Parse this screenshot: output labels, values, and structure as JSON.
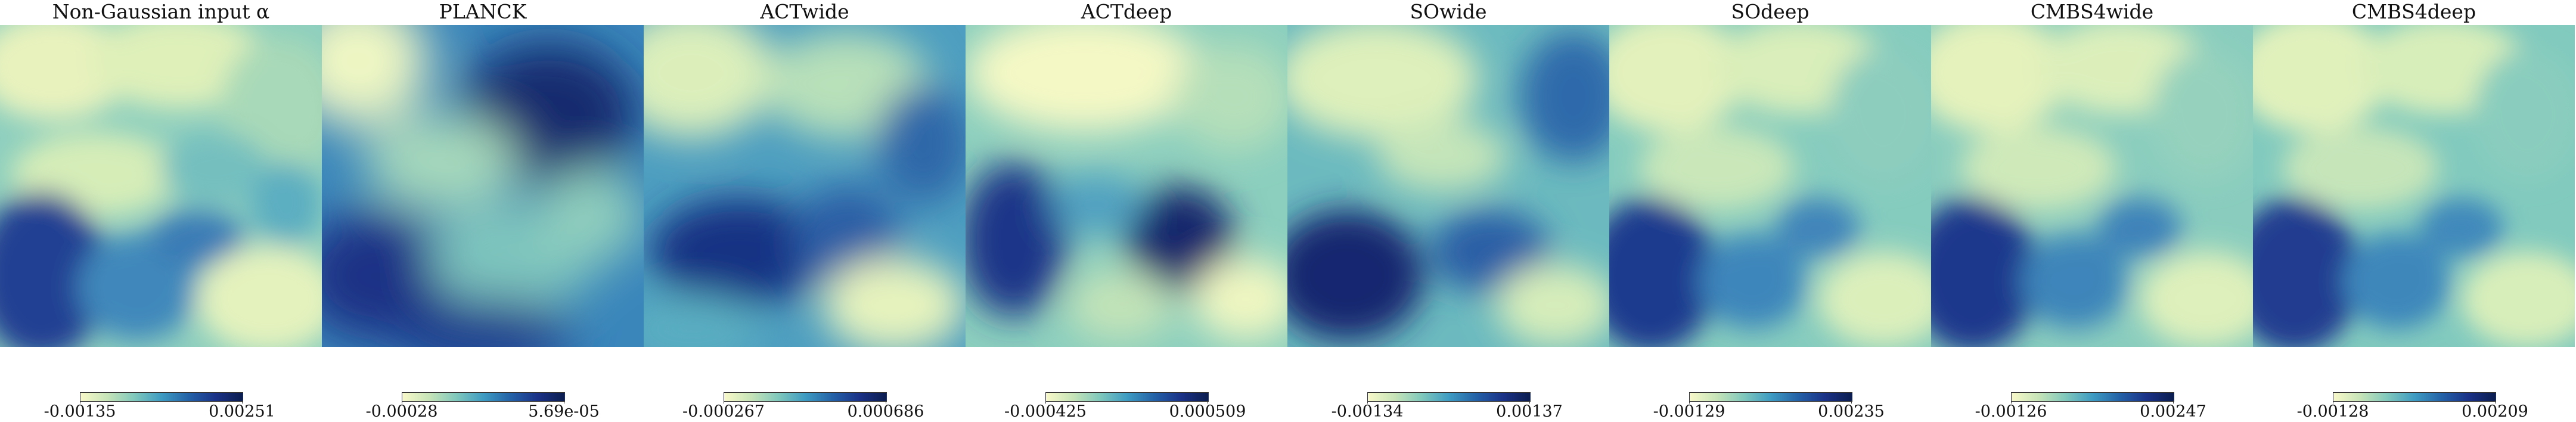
{
  "panels": [
    {
      "title": "Non-Gaussian input α",
      "min_label": "-0.00135",
      "max_label": "0.00251"
    },
    {
      "title": "PLANCK",
      "min_label": "-0.00028",
      "max_label": "5.69e-05"
    },
    {
      "title": "ACTwide",
      "min_label": "-0.000267",
      "max_label": "0.000686"
    },
    {
      "title": "ACTdeep",
      "min_label": "-0.000425",
      "max_label": "0.000509"
    },
    {
      "title": "SOwide",
      "min_label": "-0.00134",
      "max_label": "0.00137"
    },
    {
      "title": "SOdeep",
      "min_label": "-0.00129",
      "max_label": "0.00235"
    },
    {
      "title": "CMBS4wide",
      "min_label": "-0.00126",
      "max_label": "0.00247"
    },
    {
      "title": "CMBS4deep",
      "min_label": "-0.00128",
      "max_label": "0.00209"
    }
  ],
  "colormap": {
    "name": "YlGnBu",
    "stops": [
      "#f8f9c9",
      "#c6e4b8",
      "#7fc8bd",
      "#3e9bc2",
      "#2462a8",
      "#1b3287",
      "#0b1d4f"
    ]
  }
}
